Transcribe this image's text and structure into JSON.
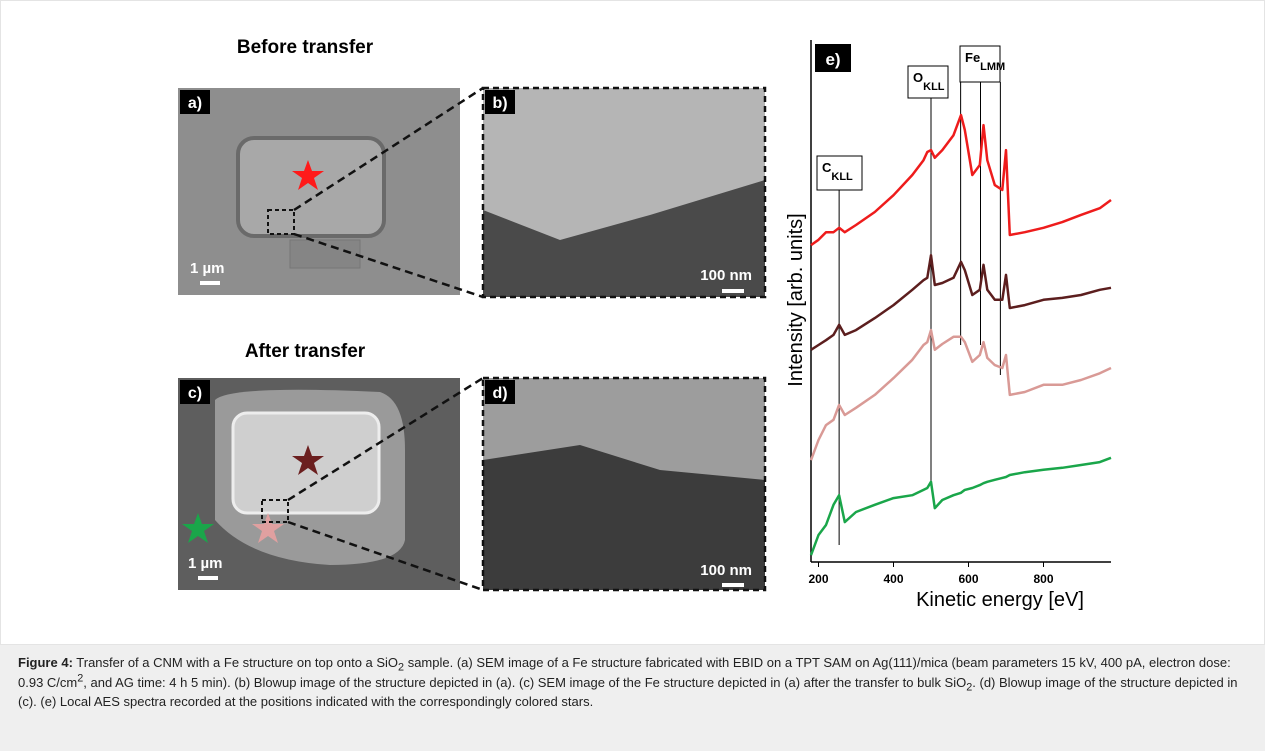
{
  "panels": {
    "before_title": "Before transfer",
    "after_title": "After transfer",
    "labels": [
      "a)",
      "b)",
      "c)",
      "d)"
    ],
    "scale_bars": [
      "1 µm",
      "100 nm",
      "1 µm",
      "100 nm"
    ]
  },
  "chart_data": {
    "type": "line",
    "panel_label": "e)",
    "xlabel": "Kinetic energy  [eV]",
    "ylabel": "Intensity [arb. units]",
    "xlim": [
      180,
      980
    ],
    "ylim": [
      0,
      100
    ],
    "xticks": [
      200,
      400,
      600,
      800
    ],
    "x": [
      180,
      200,
      220,
      240,
      255,
      270,
      300,
      350,
      400,
      450,
      480,
      490,
      500,
      510,
      530,
      560,
      580,
      590,
      610,
      630,
      640,
      650,
      670,
      690,
      700,
      710,
      750,
      800,
      850,
      900,
      950,
      980
    ],
    "series": [
      {
        "color": "#ee1c1c",
        "values": [
          65.6,
          66.7,
          68.3,
          68.3,
          69.2,
          68.3,
          69.8,
          72.5,
          76,
          80.2,
          83.3,
          85,
          85.4,
          83.8,
          85.4,
          88.5,
          92.7,
          89.6,
          80.2,
          82.3,
          90.6,
          83.3,
          78.1,
          77.1,
          85.4,
          67.7,
          68.3,
          69.2,
          70.4,
          71.9,
          73.3,
          75
        ]
      },
      {
        "color": "#5c1e1e",
        "values": [
          43.8,
          44.8,
          45.8,
          46.9,
          49,
          46.9,
          47.9,
          50.4,
          53.1,
          56.3,
          58.3,
          58.8,
          63.5,
          57.3,
          57.7,
          58.8,
          62.1,
          60.4,
          55.2,
          56.3,
          61.5,
          56.3,
          54.2,
          54.2,
          59.4,
          52.5,
          53.1,
          54.2,
          54.6,
          55.2,
          56.3,
          56.7
        ]
      },
      {
        "color": "#d99a96",
        "values": [
          20.8,
          25,
          28.1,
          29.2,
          32.3,
          30.2,
          31.7,
          34.4,
          37.9,
          41.7,
          44.8,
          45.4,
          47.9,
          43.8,
          45,
          46.5,
          46.5,
          45.4,
          41.3,
          42.7,
          45.4,
          42.1,
          40.6,
          40,
          42.7,
          34.4,
          35,
          36.5,
          36.5,
          37.5,
          38.9,
          40
        ]
      },
      {
        "color": "#1aa64a",
        "values": [
          1,
          5.2,
          7.3,
          11.5,
          13.5,
          7.9,
          10,
          11.5,
          12.9,
          13.5,
          14.6,
          15,
          16.3,
          10.8,
          12.5,
          13.5,
          14,
          14.6,
          15,
          15.6,
          16,
          16.3,
          16.7,
          17.1,
          17.3,
          17.7,
          18.3,
          18.8,
          19.2,
          19.8,
          20.4,
          21.3
        ]
      }
    ],
    "annotations": [
      {
        "label": "C",
        "subscript": "KLL",
        "lines": [
          255
        ]
      },
      {
        "label": "O",
        "subscript": "KLL",
        "lines": [
          500
        ]
      },
      {
        "label": "Fe",
        "subscript": "LMM",
        "lines": [
          579,
          632,
          685
        ]
      }
    ]
  },
  "caption": {
    "label": "Figure 4:",
    "parts": [
      " Transfer of a CNM with a Fe structure on top onto a SiO",
      {
        "sub": "2"
      },
      " sample. (a) SEM image of a Fe structure fabricated with EBID on a TPT SAM on Ag(111)/mica (beam parameters 15 kV, 400 pA, electron dose: 0.93 C/cm",
      {
        "sup": "2"
      },
      ", and AG time: 4 h 5 min). (b) Blowup image of the structure depicted in (a). (c) SEM image of the Fe structure depicted in (a) after the transfer to bulk SiO",
      {
        "sub": "2"
      },
      ". (d) Blowup image of the structure depicted in (c). (e) Local AES spectra recorded at the positions indicated with the correspondingly colored stars."
    ]
  }
}
